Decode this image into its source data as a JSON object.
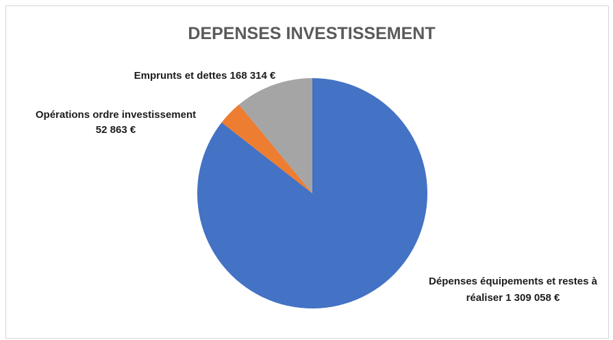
{
  "chart_data": {
    "type": "pie",
    "title": "DEPENSES INVESTISSEMENT",
    "slices": [
      {
        "name": "Dépenses équipements et restes à réaliser",
        "value": 1309058,
        "label_lines": [
          "Dépenses équipements et restes à",
          "réaliser 1 309 058 €"
        ],
        "color": "#4472C4"
      },
      {
        "name": "Opérations ordre investissement",
        "value": 52863,
        "label_lines": [
          "Opérations ordre investissement",
          "52 863 €"
        ],
        "color": "#ED7D31"
      },
      {
        "name": "Emprunts et dettes",
        "value": 168314,
        "label_lines": [
          "Emprunts et dettes  168 314 €"
        ],
        "color": "#A5A5A5"
      }
    ],
    "start": "12 o'clock",
    "direction": "clockwise"
  }
}
